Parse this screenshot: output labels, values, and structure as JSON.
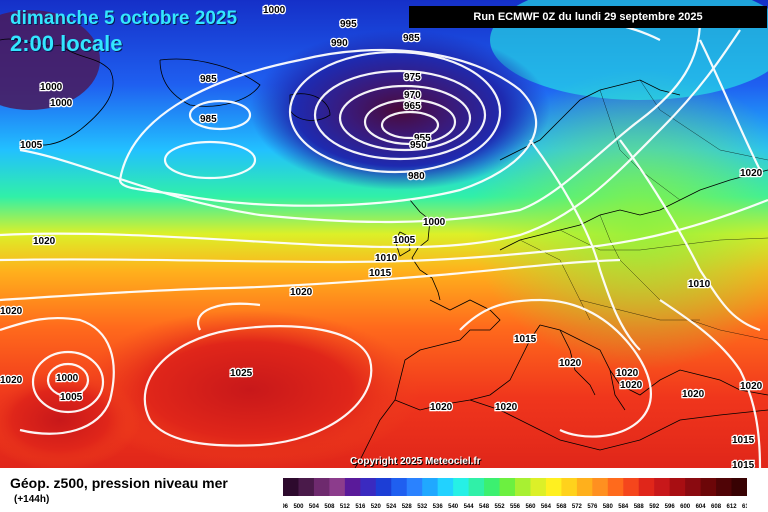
{
  "header": {
    "date": "dimanche 5 octobre 2025",
    "time": "2:00 locale",
    "run": "Run ECMWF 0Z du lundi 29 septembre 2025"
  },
  "map": {
    "copyright": "Copyright 2025 Meteociel.fr",
    "isobar_labels": [
      "1000",
      "995",
      "990",
      "985",
      "975",
      "970",
      "965",
      "955",
      "950",
      "980",
      "985",
      "985",
      "1000",
      "1000",
      "1005",
      "1000",
      "1005",
      "1010",
      "1015",
      "1020",
      "1020",
      "1020",
      "1025",
      "1020",
      "1000",
      "1005",
      "1020",
      "1015",
      "1020",
      "1020",
      "1020",
      "1020",
      "1020",
      "1020",
      "1015",
      "1015",
      "1010",
      "1020",
      "995"
    ]
  },
  "legend": {
    "title": "Géop. z500, pression niveau mer",
    "subtitle": "(+144h)",
    "scale_labels": [
      "496",
      "500",
      "504",
      "508",
      "512",
      "516",
      "520",
      "524",
      "528",
      "532",
      "536",
      "540",
      "544",
      "548",
      "552",
      "556",
      "560",
      "564",
      "568",
      "572",
      "576",
      "580",
      "584",
      "588",
      "592",
      "596",
      "600",
      "604",
      "608",
      "612",
      "616"
    ],
    "scale_colors": [
      "#2d0a2d",
      "#4a1a4a",
      "#6e2a6e",
      "#8c3c8c",
      "#5a1a9a",
      "#3a2ac0",
      "#1c3ed6",
      "#1f5ff0",
      "#2a82ff",
      "#20a8ff",
      "#22d2ff",
      "#26f0e6",
      "#30f0a8",
      "#3cf070",
      "#6cf040",
      "#a8f032",
      "#dcf028",
      "#fff020",
      "#ffd21c",
      "#ffb01c",
      "#ff9020",
      "#ff6a1c",
      "#f5461c",
      "#e0261a",
      "#c8181a",
      "#a80e12",
      "#8a0a10",
      "#6c0608",
      "#500406",
      "#380203"
    ]
  }
}
